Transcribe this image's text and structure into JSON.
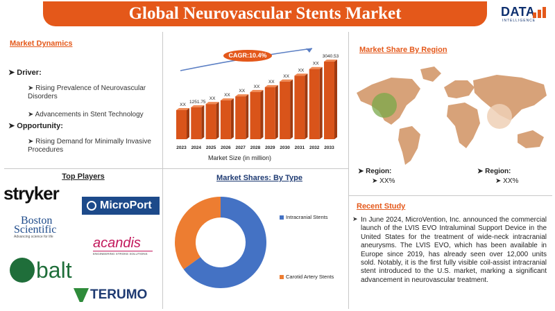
{
  "header": {
    "title": "Global Neurovascular Stents Market",
    "logo_text": "DATA",
    "logo_sub": "INTELLIGENCE"
  },
  "market_dynamics": {
    "title": "Market Dynamics",
    "driver_label": "Driver:",
    "drivers": [
      "Rising Prevalence of Neurovascular Disorders",
      "Advancements in Stent Technology"
    ],
    "opportunity_label": "Opportunity:",
    "opportunities": [
      "Rising Demand for Minimally Invasive Procedures"
    ]
  },
  "market_size_chart": {
    "cagr_label": "CAGR:10.4%",
    "caption": "Market Size (in million)",
    "bar_color": "#d9541a"
  },
  "chart_data": [
    {
      "type": "bar",
      "categories": [
        "2023",
        "2024",
        "2025",
        "2026",
        "2027",
        "2028",
        "2029",
        "2030",
        "2031",
        "2032",
        "2033"
      ],
      "values": [
        1140,
        1251.75,
        1380,
        1520,
        1680,
        1850,
        2040,
        2260,
        2490,
        2750,
        3040.53
      ],
      "data_labels": [
        "XX",
        "1251.75",
        "XX",
        "XX",
        "XX",
        "XX",
        "XX",
        "XX",
        "XX",
        "XX",
        "3040.53"
      ],
      "xlabel": "Market Size (in million)"
    },
    {
      "type": "pie",
      "title": "Market Shares: By Type",
      "series": [
        {
          "name": "Intracranial Stents",
          "value": 65,
          "color": "#4472c4"
        },
        {
          "name": "Carotid Artery Stents",
          "value": 35,
          "color": "#ed7d31"
        }
      ]
    }
  ],
  "region": {
    "title": "Market Share By Region",
    "region1_label": "Region:",
    "region1_value": "XX%",
    "region2_label": "Region:",
    "region2_value": "XX%"
  },
  "top_players": {
    "title": "Top Players",
    "names": [
      "stryker",
      "MicroPort",
      "Boston",
      "Scientific",
      "Advancing science for life",
      "acandis",
      "ENGINEERING STROKE SOLUTIONS",
      "balt",
      "TERUMO"
    ]
  },
  "recent_study": {
    "title": "Recent Study",
    "text": "In June 2024, MicroVention, Inc. announced the commercial launch of the LVIS EVO Intraluminal Support Device in the United States for the treatment of wide-neck intracranial aneurysms. The LVIS EVO, which has been available in Europe since 2019, has already seen over 12,000 units sold. Notably, it is the first fully visible coil-assist intracranial stent introduced to the U.S. market, marking a significant advancement in neurovascular treatment."
  }
}
